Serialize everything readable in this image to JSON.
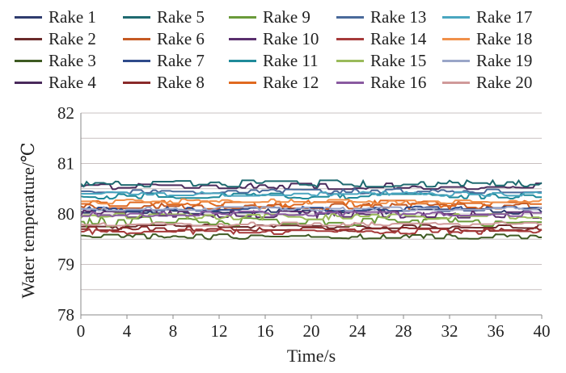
{
  "chart_data": {
    "type": "line",
    "title": "",
    "xlabel": "Time/s",
    "ylabel": "Water temperature/℃",
    "xlim": [
      0,
      40
    ],
    "ylim": [
      78,
      82
    ],
    "xticks": [
      0,
      4,
      8,
      12,
      16,
      20,
      24,
      28,
      32,
      36,
      40
    ],
    "yticks": [
      78,
      79,
      80,
      81,
      82
    ],
    "minor_gridlines": [
      78.5,
      79.5,
      80.5,
      81.5
    ],
    "grid": "horizontal",
    "legend_position": "top",
    "series": [
      {
        "name": "Rake 1",
        "color": "#2f3c6e",
        "level": 80.05,
        "noise": 0.05
      },
      {
        "name": "Rake 2",
        "color": "#6b2a2a",
        "level": 79.75,
        "noise": 0.05
      },
      {
        "name": "Rake 3",
        "color": "#3e5a22",
        "level": 79.55,
        "noise": 0.05
      },
      {
        "name": "Rake 4",
        "color": "#4a2a5c",
        "level": 80.55,
        "noise": 0.06
      },
      {
        "name": "Rake 5",
        "color": "#1f6a70",
        "level": 80.6,
        "noise": 0.07
      },
      {
        "name": "Rake 6",
        "color": "#c55a23",
        "level": 80.15,
        "noise": 0.06
      },
      {
        "name": "Rake 7",
        "color": "#2e4a8a",
        "level": 80.1,
        "noise": 0.05
      },
      {
        "name": "Rake 8",
        "color": "#8a2a2a",
        "level": 79.7,
        "noise": 0.05
      },
      {
        "name": "Rake 9",
        "color": "#6a9a3a",
        "level": 79.85,
        "noise": 0.1
      },
      {
        "name": "Rake 10",
        "color": "#5a2f6e",
        "level": 80.0,
        "noise": 0.08
      },
      {
        "name": "Rake 11",
        "color": "#1f8a9a",
        "level": 80.35,
        "noise": 0.06
      },
      {
        "name": "Rake 12",
        "color": "#e06a20",
        "level": 80.2,
        "noise": 0.07
      },
      {
        "name": "Rake 13",
        "color": "#4a6a9a",
        "level": 80.45,
        "noise": 0.05
      },
      {
        "name": "Rake 14",
        "color": "#a63a3a",
        "level": 79.65,
        "noise": 0.05
      },
      {
        "name": "Rake 15",
        "color": "#9aba5a",
        "level": 79.95,
        "noise": 0.06
      },
      {
        "name": "Rake 16",
        "color": "#8a5aa0",
        "level": 80.0,
        "noise": 0.05
      },
      {
        "name": "Rake 17",
        "color": "#4aa6c0",
        "level": 80.4,
        "noise": 0.05
      },
      {
        "name": "Rake 18",
        "color": "#f0904a",
        "level": 80.25,
        "noise": 0.05
      },
      {
        "name": "Rake 19",
        "color": "#9aa6c8",
        "level": 80.1,
        "noise": 0.04
      },
      {
        "name": "Rake 20",
        "color": "#d09a9a",
        "level": 79.8,
        "noise": 0.04
      }
    ]
  }
}
